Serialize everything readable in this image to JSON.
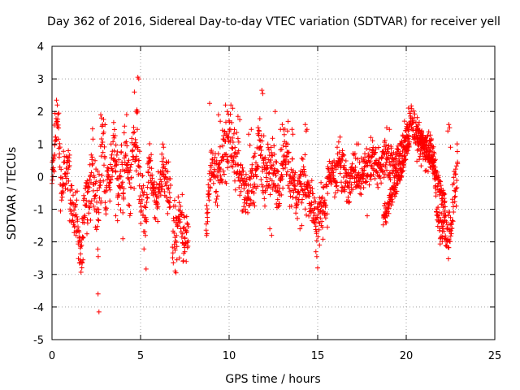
{
  "chart_data": {
    "type": "scatter",
    "title": "Day 362 of 2016, Sidereal Day-to-day VTEC variation (SDTVAR) for receiver yell",
    "xlabel": "GPS time / hours",
    "ylabel": "SDTVAR / TECUs",
    "xlim": [
      0,
      25
    ],
    "ylim": [
      -5,
      4
    ],
    "xticks": [
      "0",
      "5",
      "10",
      "15",
      "20",
      "25"
    ],
    "yticks": [
      "-5",
      "-4",
      "-3",
      "-2",
      "-1",
      "0",
      "1",
      "2",
      "3",
      "4"
    ],
    "grid": true,
    "marker": "+",
    "point_color": "#ff0000",
    "segments": [
      {
        "start": 0.0,
        "end": 1.0,
        "step": 0.012,
        "anchors": [
          [
            0,
            0.3
          ],
          [
            0.1,
            0.6
          ],
          [
            0.2,
            1.5
          ],
          [
            0.3,
            2.0
          ],
          [
            0.4,
            1.0
          ],
          [
            0.5,
            -0.2
          ],
          [
            0.6,
            -0.5
          ],
          [
            0.7,
            0.5
          ],
          [
            0.8,
            0.2
          ],
          [
            0.9,
            0.0
          ],
          [
            1.0,
            0.6
          ]
        ],
        "noise": 0.5,
        "seed": 11
      },
      {
        "start": 1.0,
        "end": 2.0,
        "step": 0.012,
        "anchors": [
          [
            1.0,
            -0.6
          ],
          [
            1.2,
            -1.1
          ],
          [
            1.4,
            -1.3
          ],
          [
            1.5,
            -1.9
          ],
          [
            1.6,
            -2.3
          ],
          [
            1.7,
            -1.9
          ],
          [
            1.8,
            -1.0
          ],
          [
            1.9,
            -0.6
          ],
          [
            2.0,
            -1.0
          ]
        ],
        "noise": 0.55,
        "seed": 12
      },
      {
        "start": 2.0,
        "end": 3.0,
        "step": 0.012,
        "anchors": [
          [
            2.0,
            -0.4
          ],
          [
            2.1,
            -0.6
          ],
          [
            2.3,
            0.2
          ],
          [
            2.5,
            -0.6
          ],
          [
            2.6,
            -1.3
          ],
          [
            2.7,
            -0.5
          ],
          [
            2.8,
            0.6
          ],
          [
            2.9,
            1.2
          ],
          [
            3.0,
            0.4
          ]
        ],
        "noise": 0.65,
        "seed": 13
      },
      {
        "start": 3.0,
        "end": 4.0,
        "step": 0.012,
        "anchors": [
          [
            3.0,
            -0.5
          ],
          [
            3.2,
            0.0
          ],
          [
            3.4,
            0.6
          ],
          [
            3.5,
            1.0
          ],
          [
            3.6,
            0.3
          ],
          [
            3.8,
            -0.3
          ],
          [
            3.9,
            0.0
          ],
          [
            4.0,
            -0.4
          ]
        ],
        "noise": 0.6,
        "seed": 14
      },
      {
        "start": 4.0,
        "end": 5.0,
        "step": 0.012,
        "anchors": [
          [
            4.0,
            -0.6
          ],
          [
            4.1,
            0.5
          ],
          [
            4.2,
            1.0
          ],
          [
            4.3,
            0.0
          ],
          [
            4.4,
            -0.5
          ],
          [
            4.5,
            0.3
          ],
          [
            4.6,
            0.9
          ],
          [
            4.7,
            0.6
          ],
          [
            4.8,
            1.4
          ],
          [
            4.9,
            0.5
          ],
          [
            5.0,
            0.0
          ]
        ],
        "noise": 0.6,
        "seed": 15
      },
      {
        "start": 5.0,
        "end": 6.0,
        "step": 0.012,
        "anchors": [
          [
            5.0,
            -1.0
          ],
          [
            5.1,
            -0.2
          ],
          [
            5.2,
            -1.4
          ],
          [
            5.3,
            -2.0
          ],
          [
            5.4,
            0.2
          ],
          [
            5.5,
            0.7
          ],
          [
            5.6,
            0.2
          ],
          [
            5.8,
            -0.6
          ],
          [
            6.0,
            -0.4
          ]
        ],
        "noise": 0.55,
        "seed": 16
      },
      {
        "start": 6.0,
        "end": 6.7,
        "step": 0.012,
        "anchors": [
          [
            6.0,
            -0.4
          ],
          [
            6.2,
            0.2
          ],
          [
            6.4,
            0.0
          ],
          [
            6.5,
            -0.2
          ],
          [
            6.6,
            -0.4
          ],
          [
            6.7,
            -0.5
          ]
        ],
        "noise": 0.4,
        "seed": 17
      },
      {
        "start": 6.8,
        "end": 7.7,
        "step": 0.012,
        "anchors": [
          [
            6.8,
            -2.0
          ],
          [
            6.9,
            -1.4
          ],
          [
            7.0,
            -1.8
          ],
          [
            7.1,
            -1.2
          ],
          [
            7.2,
            -1.6
          ],
          [
            7.3,
            -1.0
          ],
          [
            7.4,
            -2.0
          ],
          [
            7.5,
            -1.8
          ],
          [
            7.7,
            -1.5
          ]
        ],
        "noise": 0.5,
        "seed": 18
      },
      {
        "start": 8.7,
        "end": 9.6,
        "step": 0.012,
        "anchors": [
          [
            8.7,
            -1.3
          ],
          [
            8.8,
            -0.9
          ],
          [
            9.0,
            0.4
          ],
          [
            9.2,
            0.2
          ],
          [
            9.3,
            -0.4
          ],
          [
            9.4,
            0.4
          ],
          [
            9.5,
            0.1
          ],
          [
            9.6,
            0.3
          ]
        ],
        "noise": 0.5,
        "seed": 19
      },
      {
        "start": 9.6,
        "end": 10.6,
        "step": 0.012,
        "anchors": [
          [
            9.6,
            0.4
          ],
          [
            9.8,
            0.8
          ],
          [
            10.0,
            1.2
          ],
          [
            10.2,
            0.9
          ],
          [
            10.4,
            0.3
          ],
          [
            10.6,
            0.2
          ]
        ],
        "noise": 0.55,
        "seed": 20
      },
      {
        "start": 10.6,
        "end": 11.6,
        "step": 0.012,
        "anchors": [
          [
            10.6,
            0.2
          ],
          [
            10.8,
            -0.3
          ],
          [
            11.0,
            -0.5
          ],
          [
            11.2,
            -0.1
          ],
          [
            11.4,
            0.0
          ],
          [
            11.6,
            0.2
          ]
        ],
        "noise": 0.55,
        "seed": 21
      },
      {
        "start": 11.6,
        "end": 12.6,
        "step": 0.012,
        "anchors": [
          [
            11.6,
            0.4
          ],
          [
            11.7,
            1.2
          ],
          [
            11.8,
            0.6
          ],
          [
            12.0,
            0.0
          ],
          [
            12.2,
            0.3
          ],
          [
            12.4,
            0.6
          ],
          [
            12.6,
            0.4
          ]
        ],
        "noise": 0.55,
        "seed": 22
      },
      {
        "start": 12.6,
        "end": 13.6,
        "step": 0.012,
        "anchors": [
          [
            12.6,
            0.0
          ],
          [
            12.8,
            -0.4
          ],
          [
            13.0,
            0.2
          ],
          [
            13.2,
            0.8
          ],
          [
            13.4,
            0.3
          ],
          [
            13.6,
            -0.2
          ]
        ],
        "noise": 0.55,
        "seed": 23
      },
      {
        "start": 13.6,
        "end": 14.6,
        "step": 0.012,
        "anchors": [
          [
            13.6,
            -0.2
          ],
          [
            13.8,
            -0.6
          ],
          [
            14.0,
            -0.2
          ],
          [
            14.2,
            0.0
          ],
          [
            14.4,
            -0.5
          ],
          [
            14.6,
            -0.7
          ]
        ],
        "noise": 0.5,
        "seed": 24
      },
      {
        "start": 14.6,
        "end": 15.6,
        "step": 0.012,
        "anchors": [
          [
            14.6,
            -0.6
          ],
          [
            14.8,
            -1.2
          ],
          [
            15.0,
            -1.6
          ],
          [
            15.1,
            -1.0
          ],
          [
            15.3,
            -0.9
          ],
          [
            15.5,
            -0.5
          ],
          [
            15.6,
            -0.1
          ]
        ],
        "noise": 0.45,
        "seed": 25
      },
      {
        "start": 15.6,
        "end": 16.6,
        "step": 0.012,
        "anchors": [
          [
            15.6,
            0.0
          ],
          [
            15.8,
            0.3
          ],
          [
            16.0,
            0.0
          ],
          [
            16.2,
            0.5
          ],
          [
            16.4,
            0.2
          ],
          [
            16.6,
            0.0
          ]
        ],
        "noise": 0.45,
        "seed": 26
      },
      {
        "start": 16.6,
        "end": 17.6,
        "step": 0.012,
        "anchors": [
          [
            16.6,
            0.0
          ],
          [
            16.8,
            -0.3
          ],
          [
            17.0,
            0.3
          ],
          [
            17.2,
            0.1
          ],
          [
            17.4,
            -0.2
          ],
          [
            17.6,
            0.2
          ]
        ],
        "noise": 0.4,
        "seed": 27
      },
      {
        "start": 17.6,
        "end": 18.6,
        "step": 0.012,
        "anchors": [
          [
            17.6,
            0.2
          ],
          [
            17.8,
            0.4
          ],
          [
            18.0,
            0.3
          ],
          [
            18.2,
            0.5
          ],
          [
            18.4,
            0.3
          ],
          [
            18.6,
            0.4
          ]
        ],
        "noise": 0.35,
        "seed": 28
      },
      {
        "start": 18.6,
        "end": 19.6,
        "step": 0.012,
        "anchors": [
          [
            18.6,
            0.4
          ],
          [
            18.8,
            0.6
          ],
          [
            19.0,
            0.5
          ],
          [
            19.2,
            0.3
          ],
          [
            19.4,
            0.4
          ],
          [
            19.6,
            0.6
          ]
        ],
        "noise": 0.35,
        "seed": 29
      },
      {
        "start": 19.6,
        "end": 20.6,
        "step": 0.012,
        "anchors": [
          [
            19.6,
            0.6
          ],
          [
            19.8,
            0.9
          ],
          [
            20.0,
            1.3
          ],
          [
            20.2,
            1.7
          ],
          [
            20.3,
            1.9
          ],
          [
            20.4,
            1.6
          ],
          [
            20.6,
            1.2
          ]
        ],
        "noise": 0.3,
        "seed": 30
      },
      {
        "start": 20.6,
        "end": 21.6,
        "step": 0.012,
        "anchors": [
          [
            20.6,
            1.1
          ],
          [
            20.8,
            0.9
          ],
          [
            21.0,
            0.8
          ],
          [
            21.2,
            0.9
          ],
          [
            21.4,
            0.7
          ],
          [
            21.6,
            0.5
          ]
        ],
        "noise": 0.35,
        "seed": 31
      },
      {
        "start": 21.6,
        "end": 22.9,
        "step": 0.012,
        "anchors": [
          [
            21.6,
            0.2
          ],
          [
            21.7,
            -1.0
          ],
          [
            21.9,
            -1.6
          ],
          [
            22.1,
            -1.2
          ],
          [
            22.3,
            -1.8
          ],
          [
            22.5,
            -1.7
          ],
          [
            22.7,
            -0.5
          ],
          [
            22.9,
            0.1
          ]
        ],
        "noise": 0.45,
        "seed": 32
      },
      {
        "start": 18.7,
        "end": 20.2,
        "step": 0.012,
        "anchors": [
          [
            18.7,
            -1.3
          ],
          [
            19.0,
            -0.8
          ],
          [
            19.3,
            -0.4
          ],
          [
            19.6,
            0.0
          ],
          [
            19.9,
            0.6
          ],
          [
            20.2,
            1.1
          ]
        ],
        "noise": 0.2,
        "seed": 33
      },
      {
        "start": 20.6,
        "end": 22.2,
        "step": 0.012,
        "anchors": [
          [
            20.6,
            1.4
          ],
          [
            21.0,
            1.0
          ],
          [
            21.4,
            0.6
          ],
          [
            21.8,
            -0.2
          ],
          [
            22.2,
            -0.8
          ]
        ],
        "noise": 0.25,
        "seed": 34
      }
    ],
    "extra_points": [
      [
        0.05,
        0.0
      ],
      [
        0.12,
        0.15
      ],
      [
        0.25,
        2.35
      ],
      [
        0.3,
        2.2
      ],
      [
        1.55,
        -2.65
      ],
      [
        1.6,
        -2.55
      ],
      [
        1.7,
        -2.65
      ],
      [
        1.75,
        -2.55
      ],
      [
        2.45,
        -1.55
      ],
      [
        2.6,
        -3.6
      ],
      [
        2.65,
        -4.15
      ],
      [
        2.75,
        1.9
      ],
      [
        2.8,
        1.8
      ],
      [
        3.6,
        -1.2
      ],
      [
        3.7,
        -1.35
      ],
      [
        4.0,
        -1.9
      ],
      [
        4.65,
        2.6
      ],
      [
        4.85,
        3.05
      ],
      [
        4.9,
        3.0
      ],
      [
        4.75,
        2.0
      ],
      [
        6.25,
        1.0
      ],
      [
        6.3,
        0.9
      ],
      [
        6.95,
        -2.9
      ],
      [
        7.0,
        -2.95
      ],
      [
        7.05,
        -2.55
      ],
      [
        7.45,
        -2.1
      ],
      [
        7.5,
        -2.3
      ],
      [
        8.75,
        -1.75
      ],
      [
        8.9,
        2.25
      ],
      [
        9.4,
        1.9
      ],
      [
        9.5,
        1.7
      ],
      [
        9.8,
        2.2
      ],
      [
        9.9,
        2.0
      ],
      [
        10.1,
        2.2
      ],
      [
        10.2,
        2.1
      ],
      [
        10.5,
        1.85
      ],
      [
        10.6,
        1.75
      ],
      [
        11.1,
        1.3
      ],
      [
        11.25,
        1.45
      ],
      [
        11.85,
        2.65
      ],
      [
        11.9,
        2.55
      ],
      [
        12.3,
        -1.6
      ],
      [
        12.4,
        -1.8
      ],
      [
        12.6,
        2.0
      ],
      [
        12.9,
        1.45
      ],
      [
        13.0,
        1.6
      ],
      [
        13.05,
        1.45
      ],
      [
        13.3,
        1.4
      ],
      [
        13.55,
        1.45
      ],
      [
        13.6,
        1.3
      ],
      [
        14.0,
        -1.6
      ],
      [
        14.1,
        -1.5
      ],
      [
        14.3,
        1.6
      ],
      [
        14.35,
        1.4
      ],
      [
        14.4,
        1.45
      ],
      [
        14.9,
        -2.3
      ],
      [
        14.95,
        -2.45
      ],
      [
        15.0,
        -2.8
      ],
      [
        15.1,
        -2.1
      ],
      [
        15.55,
        -1.55
      ],
      [
        16.1,
        0.9
      ],
      [
        16.4,
        0.8
      ],
      [
        17.2,
        1.0
      ],
      [
        17.3,
        1.0
      ],
      [
        17.8,
        -1.2
      ],
      [
        18.0,
        1.2
      ],
      [
        18.1,
        1.1
      ],
      [
        18.9,
        1.5
      ],
      [
        19.05,
        1.45
      ],
      [
        22.05,
        -1.85
      ],
      [
        22.15,
        -1.9
      ],
      [
        22.3,
        -1.95
      ],
      [
        22.35,
        1.4
      ],
      [
        22.4,
        1.6
      ],
      [
        22.45,
        1.5
      ],
      [
        22.5,
        0.9
      ],
      [
        22.9,
        0.4
      ]
    ]
  }
}
